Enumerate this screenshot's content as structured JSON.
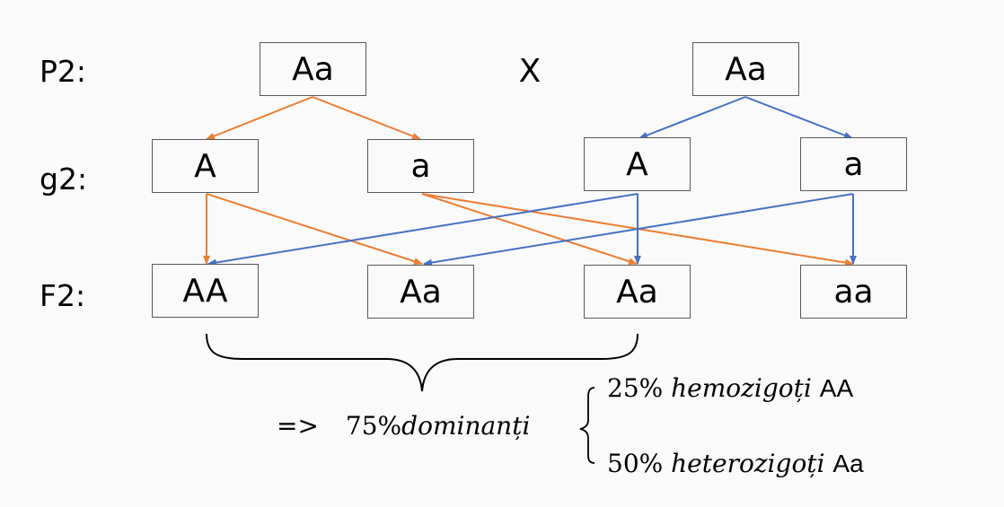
{
  "row_labels": {
    "p2": "P2:",
    "g2": "g2:",
    "f2": "F2:"
  },
  "parents": {
    "left": "Aa",
    "cross": "X",
    "right": "Aa"
  },
  "gametes": [
    "A",
    "a",
    "A",
    "a"
  ],
  "offspring": [
    "AA",
    "Aa",
    "Aa",
    "aa"
  ],
  "summary": {
    "arrow": "=>",
    "total": "75%",
    "total_word": "dominanți",
    "homo_pct": "25%",
    "homo_word": "hemozigoți",
    "homo_geno": "AA",
    "hetero_pct": "50%",
    "hetero_word": "heterozigoți",
    "hetero_geno": "Aa"
  },
  "colors": {
    "left_parent_lines": "#ed7d31",
    "right_parent_lines": "#4472c4",
    "box_border": "#595959",
    "background": "#fafafa"
  }
}
